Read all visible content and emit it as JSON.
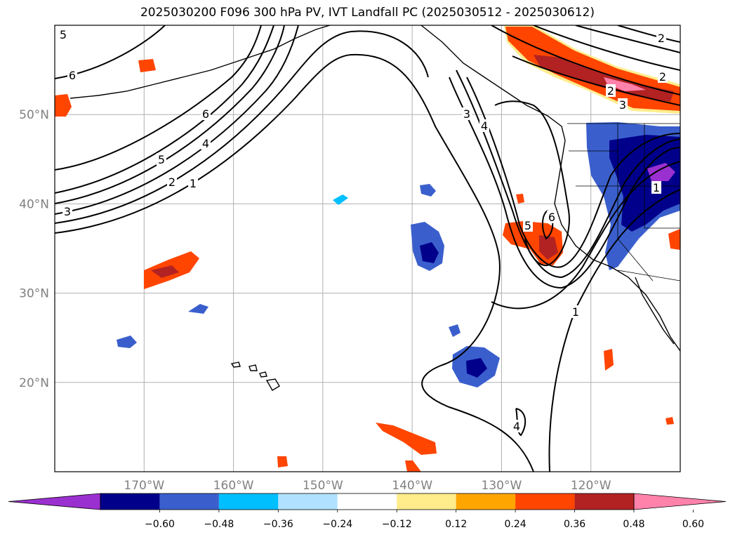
{
  "title": "2025030200 F096 300 hPa PV, IVT Landfall PC (2025030512 - 2025030612)",
  "map": {
    "lon_range": [
      -180,
      -110
    ],
    "lat_range": [
      10,
      60
    ],
    "lat_ticks": [
      {
        "lat": 50,
        "label": "50°N"
      },
      {
        "lat": 40,
        "label": "40°N"
      },
      {
        "lat": 30,
        "label": "30°N"
      },
      {
        "lat": 20,
        "label": "20°N"
      }
    ],
    "lon_ticks": [
      {
        "lon": -170,
        "label": "170°W"
      },
      {
        "lon": -160,
        "label": "160°W"
      },
      {
        "lon": -150,
        "label": "150°W"
      },
      {
        "lon": -140,
        "label": "140°W"
      },
      {
        "lon": -130,
        "label": "130°W"
      },
      {
        "lon": -120,
        "label": "120°W"
      }
    ],
    "gridlines": true,
    "contour_labels": [
      "5",
      "6",
      "6",
      "4",
      "5",
      "2",
      "1",
      "3",
      "3",
      "4",
      "1",
      "5",
      "6",
      "2",
      "1",
      "2",
      "3",
      "2",
      "4"
    ]
  },
  "colorbar": {
    "ticks": [
      "−0.60",
      "−0.48",
      "−0.36",
      "−0.24",
      "−0.12",
      "0.12",
      "0.24",
      "0.36",
      "0.48",
      "0.60"
    ],
    "colors": [
      "#9b30d0",
      "#00008b",
      "#3a5fcd",
      "#00bfff",
      "#b0e2ff",
      "#ffffff",
      "#ffec8b",
      "#ffa500",
      "#ff4500",
      "#b22222",
      "#ff82ab"
    ],
    "extend": "both"
  }
}
